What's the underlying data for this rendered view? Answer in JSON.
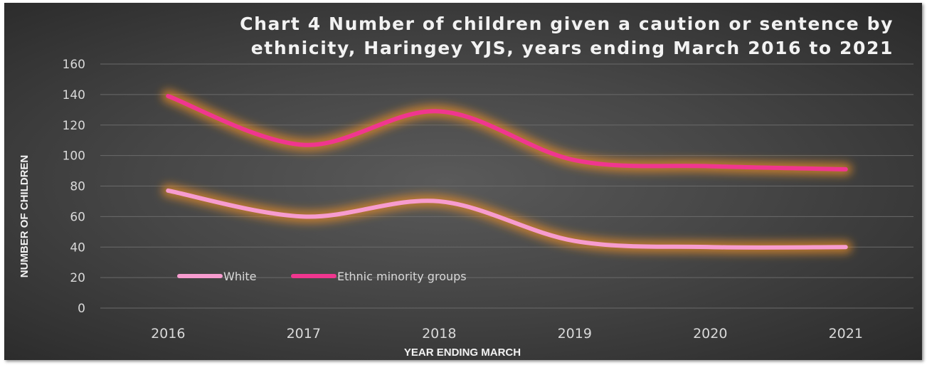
{
  "chart_data": {
    "type": "line",
    "title_lines": [
      "Chart 4 Number of children given a caution or sentence by",
      "ethnicity, Haringey YJS, years ending March 2016 to 2021"
    ],
    "xlabel": "YEAR ENDING MARCH",
    "ylabel": "NUMBER OF CHILDREN",
    "categories": [
      "2016",
      "2017",
      "2018",
      "2019",
      "2020",
      "2021"
    ],
    "ylim": [
      0,
      160
    ],
    "yticks": [
      0,
      20,
      40,
      60,
      80,
      100,
      120,
      140,
      160
    ],
    "grid": true,
    "smooth": true,
    "legend_position": "bottom-left",
    "series": [
      {
        "name": "White",
        "values": [
          77,
          60,
          70,
          44,
          40,
          40
        ],
        "color": "#f79ccf"
      },
      {
        "name": "Ethnic minority groups",
        "values": [
          139,
          107,
          129,
          97,
          93,
          91
        ],
        "color": "#f0368f"
      }
    ],
    "glow_color": "#e08a2a",
    "background_color": "#474747"
  }
}
